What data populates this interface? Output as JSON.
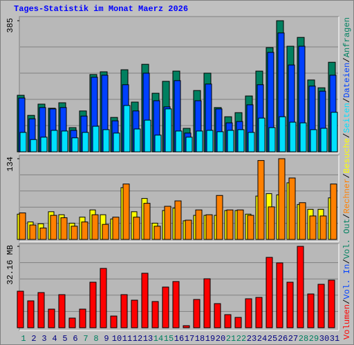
{
  "title": "Tages-Statistik im Monat Maerz 2026",
  "legend_separator": "/",
  "chart_data": [
    {
      "type": "bar",
      "series": [
        {
          "name": "Anfragen",
          "color": "#008060",
          "values": [
            166,
            107,
            140,
            128,
            144,
            71,
            120,
            227,
            235,
            101,
            241,
            146,
            257,
            172,
            207,
            237,
            69,
            180,
            231,
            130,
            103,
            115,
            164,
            237,
            306,
            385,
            310,
            336,
            211,
            188,
            263
          ]
        },
        {
          "name": "Dateien",
          "color": "#0040ff",
          "values": [
            158,
            97,
            130,
            126,
            130,
            63,
            105,
            219,
            225,
            91,
            197,
            120,
            231,
            150,
            132,
            209,
            55,
            150,
            199,
            126,
            85,
            89,
            138,
            197,
            292,
            349,
            255,
            310,
            193,
            178,
            225
          ]
        },
        {
          "name": "Seiten",
          "color": "#00e0ff",
          "values": [
            57,
            36,
            43,
            63,
            61,
            41,
            57,
            75,
            65,
            55,
            136,
            67,
            93,
            49,
            126,
            61,
            43,
            61,
            63,
            59,
            63,
            65,
            57,
            99,
            71,
            103,
            87,
            85,
            65,
            69,
            116
          ]
        }
      ],
      "ylim": [
        0,
        385
      ],
      "yticks": [
        385
      ]
    },
    {
      "type": "bar",
      "series": [
        {
          "name": "Besuche",
          "color": "#ffff00",
          "values": [
            42,
            29,
            26,
            46,
            41,
            27,
            37,
            49,
            41,
            34,
            86,
            46,
            68,
            27,
            48,
            52,
            31,
            40,
            40,
            40,
            48,
            48,
            42,
            72,
            76,
            74,
            94,
            58,
            50,
            50,
            69
          ]
        },
        {
          "name": "Rechner",
          "color": "#ff8000",
          "values": [
            44,
            24,
            19,
            40,
            36,
            22,
            29,
            41,
            25,
            37,
            92,
            37,
            60,
            22,
            55,
            64,
            32,
            49,
            41,
            73,
            49,
            49,
            40,
            131,
            54,
            134,
            102,
            61,
            39,
            39,
            92
          ]
        }
      ],
      "ylim": [
        0,
        134
      ],
      "yticks": [
        134
      ]
    },
    {
      "type": "bar",
      "series": [
        {
          "name": "Volumen",
          "color": "#ff0000",
          "values": [
            14.44,
            10.63,
            13.9,
            7.36,
            13.08,
            3.82,
            7.36,
            17.99,
            23.44,
            4.63,
            13.08,
            10.9,
            21.53,
            10.36,
            16.08,
            18.26,
            0.82,
            11.17,
            19.35,
            9.54,
            5.18,
            4.09,
            11.45,
            11.99,
            27.8,
            25.62,
            17.99,
            32.16,
            13.35,
            17.17,
            18.81
          ]
        }
      ],
      "legend_only": [
        {
          "name": "Vol. In",
          "color": "#0040ff"
        },
        {
          "name": "Vol. Out",
          "color": "#008060"
        }
      ],
      "ylim": [
        0,
        32.16
      ],
      "yticks": [
        {
          "value": 32.16,
          "label": "32.16 MB"
        }
      ],
      "categories": [
        "1",
        "2",
        "3",
        "4",
        "5",
        "6",
        "7",
        "8",
        "9",
        "10",
        "11",
        "12",
        "13",
        "14",
        "15",
        "16",
        "17",
        "18",
        "19",
        "20",
        "21",
        "22",
        "23",
        "24",
        "25",
        "26",
        "27",
        "28",
        "29",
        "30",
        "31"
      ],
      "category_colors": [
        "#008060",
        "#000080",
        "#000080",
        "#000080",
        "#000080",
        "#000080",
        "#008060",
        "#008060",
        "#000080",
        "#000080",
        "#000080",
        "#000080",
        "#000080",
        "#008060",
        "#008060",
        "#000080",
        "#000080",
        "#000080",
        "#000080",
        "#000080",
        "#008060",
        "#008060",
        "#000080",
        "#000080",
        "#000080",
        "#000080",
        "#000080",
        "#008060",
        "#008060",
        "#000080",
        "#000080"
      ]
    }
  ]
}
